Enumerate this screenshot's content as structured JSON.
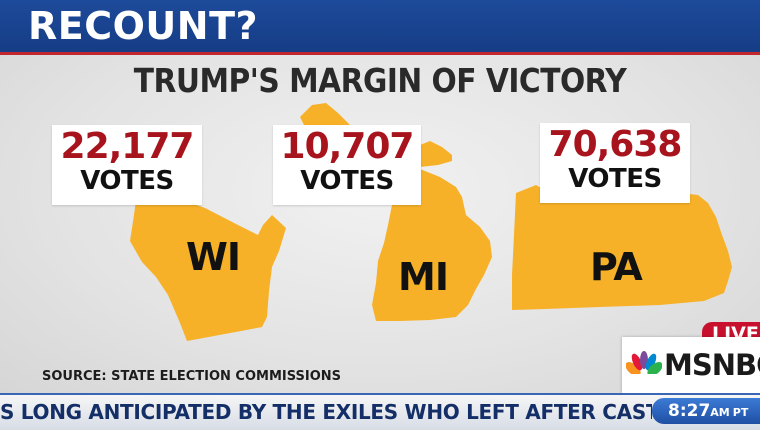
{
  "banner": {
    "title": "RECOUNT?"
  },
  "graphic": {
    "headline": "TRUMP'S MARGIN OF VICTORY",
    "states": [
      {
        "label": "WI",
        "votes": "22,177",
        "unit": "VOTES"
      },
      {
        "label": "MI",
        "votes": "10,707",
        "unit": "VOTES"
      },
      {
        "label": "PA",
        "votes": "70,638",
        "unit": "VOTES"
      }
    ],
    "source": "SOURCE: STATE ELECTION COMMISSIONS",
    "colors": {
      "state_fill": "#f6b128",
      "vote_number": "#a8141d"
    }
  },
  "broadcast": {
    "live_label": "LIVE",
    "network": "MSNBC",
    "ticker": "S LONG ANTICIPATED BY THE EXILES WHO LEFT AFTER CASTRO TOOK POWER",
    "time": "8:27",
    "ampm": "AM",
    "timezone": "PT"
  }
}
